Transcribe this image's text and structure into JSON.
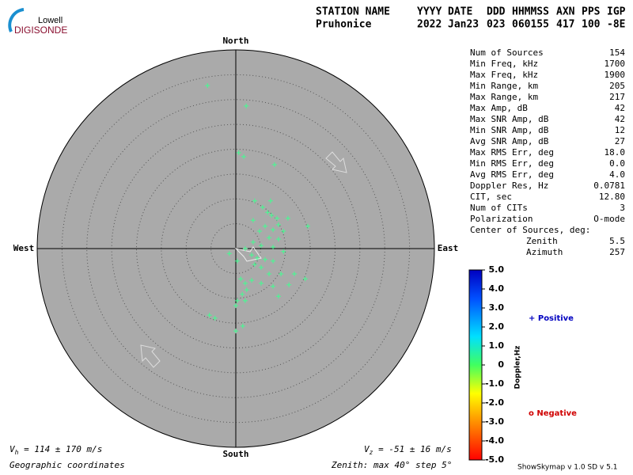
{
  "logo": {
    "top": "Lowell",
    "bottom": "DIGISONDE"
  },
  "header": {
    "columns": [
      "STATION NAME",
      "YYYY",
      "DATE",
      "DDD",
      "HHMMSS",
      "AXN",
      "PPS",
      "IGP"
    ],
    "values": [
      "Pruhonice",
      "2022",
      "Jan23",
      "023",
      "060155",
      "417",
      "100",
      "-8E"
    ]
  },
  "stats": {
    "rows": [
      [
        "Num of Sources",
        "154"
      ],
      [
        "Min Freq, kHz",
        "1700"
      ],
      [
        "Max Freq, kHz",
        "1900"
      ],
      [
        "Min Range, km",
        "205"
      ],
      [
        "Max Range, km",
        "217"
      ],
      [
        "Max Amp, dB",
        "42"
      ],
      [
        "Max SNR Amp, dB",
        "42"
      ],
      [
        "Min SNR Amp, dB",
        "12"
      ],
      [
        "Avg SNR Amp, dB",
        "27"
      ],
      [
        "Max RMS Err, deg",
        "18.0"
      ],
      [
        "Min RMS Err, deg",
        "0.0"
      ],
      [
        "Avg RMS Err, deg",
        "4.0"
      ],
      [
        "Doppler Res, Hz",
        "0.0781"
      ],
      [
        "CIT, sec",
        "12.80"
      ],
      [
        "Num of CITs",
        "3"
      ],
      [
        "Polarization",
        "O-mode"
      ]
    ],
    "center_title": "Center of Sources, deg:",
    "center_rows": [
      [
        "Zenith",
        "5.5"
      ],
      [
        "Azimuth",
        "257"
      ]
    ]
  },
  "chart_data": {
    "type": "scatter",
    "directions": {
      "north": "North",
      "east": "East",
      "south": "South",
      "west": "West"
    },
    "rlim": [
      0,
      40
    ],
    "rticks": [
      5,
      10,
      15,
      20,
      25,
      30,
      35,
      40
    ],
    "series": [
      {
        "color": "#40ff90",
        "x": [
          -5.7,
          2.1,
          0.6,
          1.6,
          7.8,
          3.8,
          7.0,
          5.4,
          6.4,
          3.5,
          7.2,
          8.3,
          10.5,
          8.6,
          7.5,
          5.9,
          4.8,
          9.6,
          14.5,
          6.7,
          8.6,
          3.5,
          5.1,
          7.5,
          9.6,
          1.9,
          -1.3,
          3.2,
          4.3,
          5.9,
          7.5,
          0.3,
          3.8,
          5.1,
          6.7,
          9.1,
          11.8,
          14.0,
          3.2,
          1.9,
          5.1,
          1.0,
          7.5,
          10.7,
          2.2,
          1.3,
          0.3,
          1.9,
          8.6,
          0,
          -5.3,
          -4.2,
          1.4,
          0
        ],
        "y": [
          32.8,
          28.7,
          19.3,
          18.5,
          16.9,
          9.6,
          9.6,
          8.3,
          7.3,
          5.7,
          6.7,
          6.1,
          6.1,
          4.8,
          3.8,
          4.5,
          3.5,
          3.5,
          4.5,
          2.2,
          1.9,
          1.3,
          0.6,
          0.3,
          -0.6,
          0,
          -1.0,
          -1.3,
          -1.9,
          -2.2,
          -2.5,
          -2.5,
          -3.2,
          -3.8,
          -5.1,
          -5.1,
          -5.1,
          -6.1,
          -6.4,
          -7.0,
          -7.0,
          -6.1,
          -7.6,
          -7.3,
          -8.3,
          -9.2,
          -10.5,
          -10.5,
          -9.6,
          -11.5,
          -13.4,
          -14.0,
          -15.6,
          -16.6
        ]
      }
    ],
    "colorbar": {
      "title": "Doppler,Hz",
      "lim": [
        -5,
        5
      ],
      "ticks": [
        {
          "value": 5,
          "label": "5.0"
        },
        {
          "value": 4,
          "label": "4.0"
        },
        {
          "value": 3,
          "label": "3.0"
        },
        {
          "value": 2,
          "label": "2.0"
        },
        {
          "value": 1,
          "label": "1.0"
        },
        0,
        {
          "value": -1,
          "label": "-1.0"
        },
        {
          "value": -2,
          "label": "-2.0"
        },
        {
          "value": -3,
          "label": "-3.0"
        },
        {
          "value": -4,
          "label": "-4.0"
        },
        {
          "value": -5,
          "label": "-5.0"
        }
      ]
    },
    "legend": {
      "positive": "+ Positive",
      "negative": "o Negative"
    },
    "vh": {
      "symbol": "V",
      "sub": "h",
      "text": " = 114 ± 170 m/s"
    },
    "vz": {
      "symbol": "V",
      "sub": "z",
      "text": " = -51 ± 16 m/s"
    },
    "coords": "Geographic coordinates",
    "zenith_note": "Zenith: max 40°  step 5°",
    "version": "ShowSkymap v 1.0  SD v 5.1"
  }
}
